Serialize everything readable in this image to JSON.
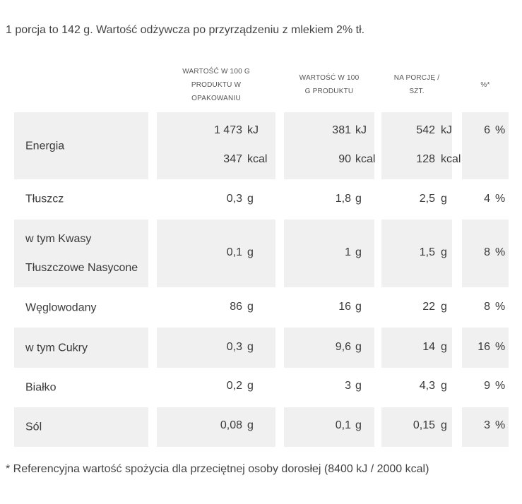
{
  "intro": "1 porcja to 142 g. Wartość odżywcza po przyrządzeniu z mlekiem 2% tł.",
  "headers": {
    "per100_packaged_line1": "WARTOŚĆ W 100 G",
    "per100_packaged_line2": "PRODUKTU W",
    "per100_packaged_line3": "OPAKOWANIU",
    "per100_line1": "WARTOŚĆ W 100",
    "per100_line2": "G PRODUKTU",
    "per_portion_line1": "NA PORCJĘ /",
    "per_portion_line2": "SZT.",
    "percent": "%*"
  },
  "rows": [
    {
      "name_line1": "Energia",
      "pkg_kj": "1 473",
      "pkg_kj_unit": "kJ",
      "pkg_kcal": "347",
      "pkg_kcal_unit": "kcal",
      "p100_kj": "381",
      "p100_kj_unit": "kJ",
      "p100_kcal": "90",
      "p100_kcal_unit": "kcal",
      "portion_kj": "542",
      "portion_kj_unit": "kJ",
      "portion_kcal": "128",
      "portion_kcal_unit": "kcal",
      "pct": "6",
      "pct_unit": "%"
    },
    {
      "name_line1": "Tłuszcz",
      "pkg": "0,3",
      "pkg_unit": "g",
      "p100": "1,8",
      "p100_unit": "g",
      "portion": "2,5",
      "portion_unit": "g",
      "pct": "4",
      "pct_unit": "%"
    },
    {
      "name_line1": "w tym Kwasy",
      "name_line2": "Tłuszczowe Nasycone",
      "pkg": "0,1",
      "pkg_unit": "g",
      "p100": "1",
      "p100_unit": "g",
      "portion": "1,5",
      "portion_unit": "g",
      "pct": "8",
      "pct_unit": "%"
    },
    {
      "name_line1": "Węglowodany",
      "pkg": "86",
      "pkg_unit": "g",
      "p100": "16",
      "p100_unit": "g",
      "portion": "22",
      "portion_unit": "g",
      "pct": "8",
      "pct_unit": "%"
    },
    {
      "name_line1": "w tym Cukry",
      "pkg": "0,3",
      "pkg_unit": "g",
      "p100": "9,6",
      "p100_unit": "g",
      "portion": "14",
      "portion_unit": "g",
      "pct": "16",
      "pct_unit": "%"
    },
    {
      "name_line1": "Białko",
      "pkg": "0,2",
      "pkg_unit": "g",
      "p100": "3",
      "p100_unit": "g",
      "portion": "4,3",
      "portion_unit": "g",
      "pct": "9",
      "pct_unit": "%"
    },
    {
      "name_line1": "Sól",
      "pkg": "0,08",
      "pkg_unit": "g",
      "p100": "0,1",
      "p100_unit": "g",
      "portion": "0,15",
      "portion_unit": "g",
      "pct": "3",
      "pct_unit": "%"
    }
  ],
  "footnote": "* Referencyjna wartość spożycia dla przeciętnej osoby dorosłej (8400 kJ / 2000 kcal)",
  "colors": {
    "row_shade": "#f0f0f0",
    "text": "#3a3a3a"
  }
}
